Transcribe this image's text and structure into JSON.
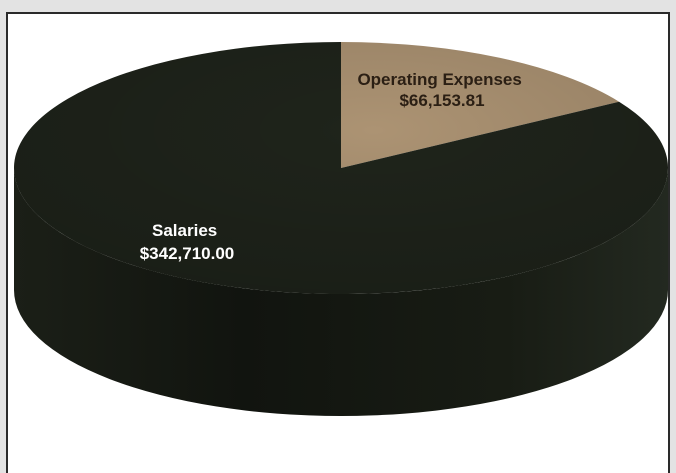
{
  "chart_data": {
    "type": "pie",
    "style": "3d",
    "slices": [
      {
        "label": "Operating Expenses",
        "value": 66153.81,
        "value_label": "$66,153.81",
        "color": "#ac9373",
        "text_color": "#2b1f14"
      },
      {
        "label": "Salaries",
        "value": 342710.0,
        "value_label": "$342,710.00",
        "color": "#1f241b",
        "text_color": "#ffffff"
      }
    ],
    "title": "",
    "legend": "none"
  }
}
